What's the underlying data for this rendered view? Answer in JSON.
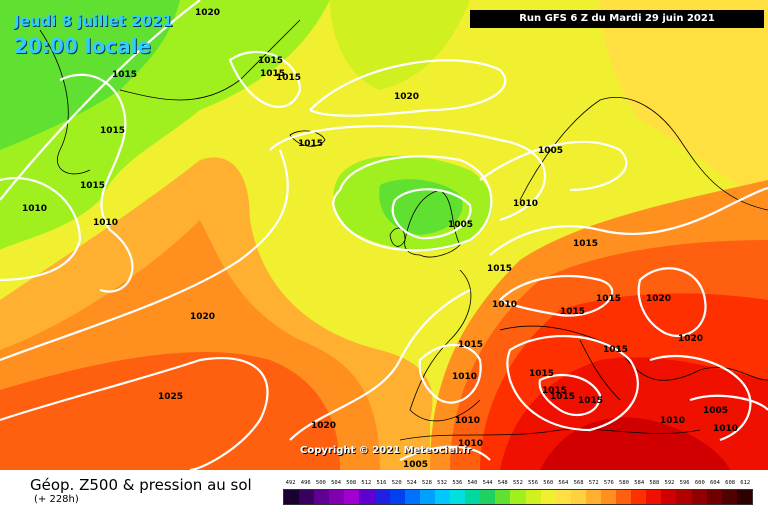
{
  "header": {
    "date": "Jeudi 8 juillet 2021",
    "time": "20:00 locale",
    "run": "Run GFS 6 Z du Mardi 29 juin 2021"
  },
  "copyright": "Copyright © 2021 Meteociel.fr",
  "footer": {
    "title": "Géop. Z500 & pression au sol",
    "subtitle": "(+ 228h)"
  },
  "legend": {
    "values": [
      "492",
      "496",
      "500",
      "504",
      "508",
      "512",
      "516",
      "520",
      "524",
      "528",
      "532",
      "536",
      "540",
      "544",
      "548",
      "552",
      "556",
      "560",
      "564",
      "568",
      "572",
      "576",
      "580",
      "584",
      "588",
      "592",
      "596",
      "600",
      "604",
      "608",
      "612"
    ],
    "colors": [
      "#1a0030",
      "#3a0060",
      "#600090",
      "#8000b0",
      "#a000d0",
      "#6000d0",
      "#2020e0",
      "#0040f0",
      "#0070ff",
      "#00a0ff",
      "#00c8ff",
      "#00e0e0",
      "#00d8a0",
      "#20d060",
      "#60e030",
      "#a0f020",
      "#d0f020",
      "#f0f030",
      "#ffe040",
      "#ffd040",
      "#ffb030",
      "#ff9020",
      "#ff6010",
      "#ff3000",
      "#f01000",
      "#d00000",
      "#b00000",
      "#900000",
      "#700000",
      "#500000",
      "#300000"
    ]
  },
  "isobars": [
    "1020",
    "1015",
    "1015",
    "1015",
    "1015",
    "1020",
    "1015",
    "1015",
    "1010",
    "1010",
    "1015",
    "1005",
    "1005",
    "1010",
    "1015",
    "1015",
    "1020",
    "1020",
    "1010",
    "1015",
    "1015",
    "1015",
    "1020",
    "1015",
    "1010",
    "1015",
    "1025",
    "1015",
    "1015",
    "1015",
    "1010",
    "1020",
    "1010",
    "1005",
    "1010",
    "1005",
    "1010"
  ],
  "colors": {
    "ocean_low": "#d8f018",
    "isobar": "#ffffff",
    "title_blue": "#33ccff"
  }
}
